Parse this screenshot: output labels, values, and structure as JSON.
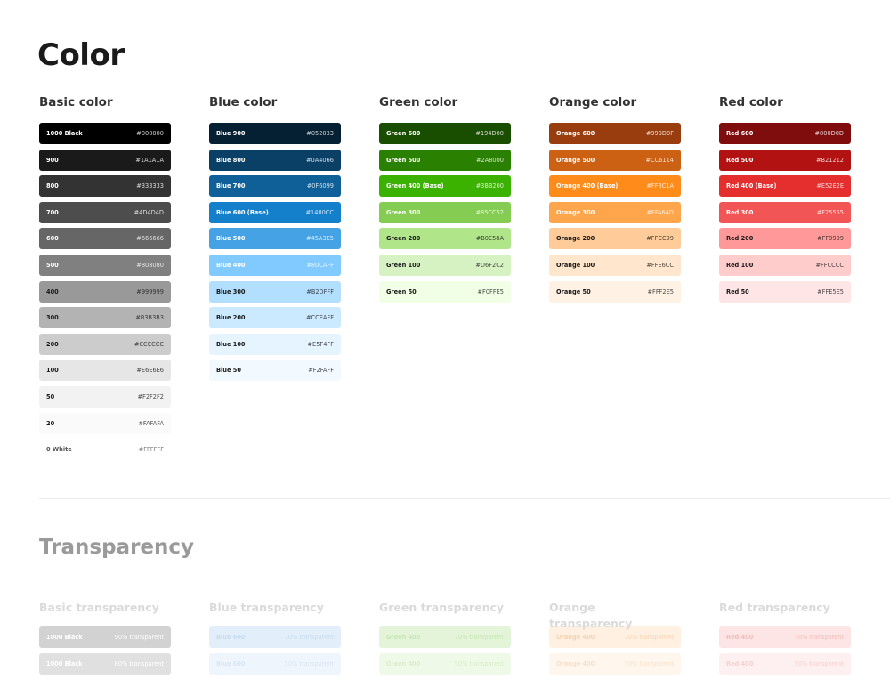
{
  "title": "Color",
  "columns": [
    {
      "heading": "Basic color",
      "swatches": [
        {
          "name": "1000 Black",
          "hex": "#000000",
          "bg": "#000000",
          "fg": "#ffffff"
        },
        {
          "name": "900",
          "hex": "#1A1A1A",
          "bg": "#1A1A1A",
          "fg": "#ffffff"
        },
        {
          "name": "800",
          "hex": "#333333",
          "bg": "#333333",
          "fg": "#ffffff"
        },
        {
          "name": "700",
          "hex": "#4D4D4D",
          "bg": "#4D4D4D",
          "fg": "#ffffff"
        },
        {
          "name": "600",
          "hex": "#666666",
          "bg": "#666666",
          "fg": "#ffffff"
        },
        {
          "name": "500",
          "hex": "#808080",
          "bg": "#808080",
          "fg": "#ffffff"
        },
        {
          "name": "400",
          "hex": "#999999",
          "bg": "#999999",
          "fg": "#1a1a1a"
        },
        {
          "name": "300",
          "hex": "#B3B3B3",
          "bg": "#B3B3B3",
          "fg": "#1a1a1a"
        },
        {
          "name": "200",
          "hex": "#CCCCCC",
          "bg": "#CCCCCC",
          "fg": "#1a1a1a"
        },
        {
          "name": "100",
          "hex": "#E6E6E6",
          "bg": "#E6E6E6",
          "fg": "#1a1a1a"
        },
        {
          "name": "50",
          "hex": "#F2F2F2",
          "bg": "#F2F2F2",
          "fg": "#1a1a1a"
        },
        {
          "name": "20",
          "hex": "#FAFAFA",
          "bg": "#FAFAFA",
          "fg": "#1a1a1a"
        },
        {
          "name": "0 White",
          "hex": "#FFFFFF",
          "bg": "#FFFFFF",
          "fg": "#555555"
        }
      ]
    },
    {
      "heading": "Blue color",
      "swatches": [
        {
          "name": "Blue 900",
          "hex": "#052033",
          "bg": "#052033",
          "fg": "#ffffff"
        },
        {
          "name": "Blue 800",
          "hex": "#0A4066",
          "bg": "#0A4066",
          "fg": "#ffffff"
        },
        {
          "name": "Blue 700",
          "hex": "#0F6099",
          "bg": "#0F6099",
          "fg": "#ffffff"
        },
        {
          "name": "Blue 600 (Base)",
          "hex": "#1480CC",
          "bg": "#1480CC",
          "fg": "#ffffff"
        },
        {
          "name": "Blue 500",
          "hex": "#45A3E5",
          "bg": "#45A3E5",
          "fg": "#ffffff"
        },
        {
          "name": "Blue 400",
          "hex": "#80CAFF",
          "bg": "#80CAFF",
          "fg": "#ffffff"
        },
        {
          "name": "Blue 300",
          "hex": "#B2DFFF",
          "bg": "#B2DFFF",
          "fg": "#1a1a1a"
        },
        {
          "name": "Blue 200",
          "hex": "#CCEAFF",
          "bg": "#CCEAFF",
          "fg": "#1a1a1a"
        },
        {
          "name": "Blue 100",
          "hex": "#E5F4FF",
          "bg": "#E5F4FF",
          "fg": "#1a1a1a"
        },
        {
          "name": "Blue 50",
          "hex": "#F2FAFF",
          "bg": "#F2FAFF",
          "fg": "#1a1a1a"
        }
      ]
    },
    {
      "heading": "Green color",
      "swatches": [
        {
          "name": "Green 600",
          "hex": "#194D00",
          "bg": "#194D00",
          "fg": "#ffffff"
        },
        {
          "name": "Green 500",
          "hex": "#2A8000",
          "bg": "#2A8000",
          "fg": "#ffffff"
        },
        {
          "name": "Green 400 (Base)",
          "hex": "#3BB200",
          "bg": "#3BB200",
          "fg": "#ffffff"
        },
        {
          "name": "Green 300",
          "hex": "#85CC52",
          "bg": "#85CC52",
          "fg": "#ffffff"
        },
        {
          "name": "Green 200",
          "hex": "#B0E58A",
          "bg": "#B0E58A",
          "fg": "#1a1a1a"
        },
        {
          "name": "Green 100",
          "hex": "#D6F2C2",
          "bg": "#D6F2C2",
          "fg": "#1a1a1a"
        },
        {
          "name": "Green 50",
          "hex": "#F0FFE5",
          "bg": "#F0FFE5",
          "fg": "#1a1a1a"
        }
      ]
    },
    {
      "heading": "Orange color",
      "swatches": [
        {
          "name": "Orange 600",
          "hex": "#993D0F",
          "bg": "#993D0F",
          "fg": "#ffffff"
        },
        {
          "name": "Orange 500",
          "hex": "#CC6114",
          "bg": "#CC6114",
          "fg": "#ffffff"
        },
        {
          "name": "Orange 400 (Base)",
          "hex": "#FF8C1A",
          "bg": "#FF8C1A",
          "fg": "#ffffff"
        },
        {
          "name": "Orange 300",
          "hex": "#FFA64D",
          "bg": "#FFA64D",
          "fg": "#ffffff"
        },
        {
          "name": "Orange 200",
          "hex": "#FFCC99",
          "bg": "#FFCC99",
          "fg": "#1a1a1a"
        },
        {
          "name": "Orange 100",
          "hex": "#FFE6CC",
          "bg": "#FFE6CC",
          "fg": "#1a1a1a"
        },
        {
          "name": "Orange 50",
          "hex": "#FFF2E5",
          "bg": "#FFF2E5",
          "fg": "#1a1a1a"
        }
      ]
    },
    {
      "heading": "Red color",
      "swatches": [
        {
          "name": "Red 600",
          "hex": "#800D0D",
          "bg": "#800D0D",
          "fg": "#ffffff"
        },
        {
          "name": "Red 500",
          "hex": "#B21212",
          "bg": "#B21212",
          "fg": "#ffffff"
        },
        {
          "name": "Red 400 (Base)",
          "hex": "#E52E2E",
          "bg": "#E52E2E",
          "fg": "#ffffff"
        },
        {
          "name": "Red 300",
          "hex": "#F25555",
          "bg": "#F25555",
          "fg": "#ffffff"
        },
        {
          "name": "Red 200",
          "hex": "#FF9999",
          "bg": "#FF9999",
          "fg": "#1a1a1a"
        },
        {
          "name": "Red 100",
          "hex": "#FFCCCC",
          "bg": "#FFCCCC",
          "fg": "#1a1a1a"
        },
        {
          "name": "Red 50",
          "hex": "#FFE5E5",
          "bg": "#FFE5E5",
          "fg": "#1a1a1a"
        }
      ]
    }
  ],
  "transparency": {
    "title": "Transparency",
    "columns": [
      {
        "heading": "Basic transparency",
        "swatches": [
          {
            "name": "1000 Black",
            "label": "90% transparent",
            "bg": "#d2d2d2",
            "fg": "#ffffff"
          },
          {
            "name": "1000 Black",
            "label": "80% transparent",
            "bg": "#e0e0e0",
            "fg": "#ffffff"
          }
        ]
      },
      {
        "heading": "Blue transparency",
        "swatches": [
          {
            "name": "Blue 600",
            "label": "70% transparent",
            "bg": "#e2eef9",
            "fg": "#c7dcef"
          },
          {
            "name": "Blue 600",
            "label": "50% transparent",
            "bg": "#eef5fc",
            "fg": "#d8e6f3"
          }
        ]
      },
      {
        "heading": "Green transparency",
        "swatches": [
          {
            "name": "Green 400",
            "label": "70% transparent",
            "bg": "#e3f4d9",
            "fg": "#c8e6b6"
          },
          {
            "name": "Green 400",
            "label": "50% transparent",
            "bg": "#eff9e8",
            "fg": "#d8eecb"
          }
        ]
      },
      {
        "heading": "Orange transparency",
        "swatches": [
          {
            "name": "Orange 400",
            "label": "70% transparent",
            "bg": "#fff0e2",
            "fg": "#f5d3b2"
          },
          {
            "name": "Orange 400",
            "label": "50% transparent",
            "bg": "#fff6ee",
            "fg": "#f7e0c9"
          }
        ]
      },
      {
        "heading": "Red transparency",
        "swatches": [
          {
            "name": "Red 400",
            "label": "70% transparent",
            "bg": "#fde5e5",
            "fg": "#f1bcbc"
          },
          {
            "name": "Red 400",
            "label": "50% transparent",
            "bg": "#fef0f0",
            "fg": "#f5cfcf"
          }
        ]
      }
    ]
  }
}
